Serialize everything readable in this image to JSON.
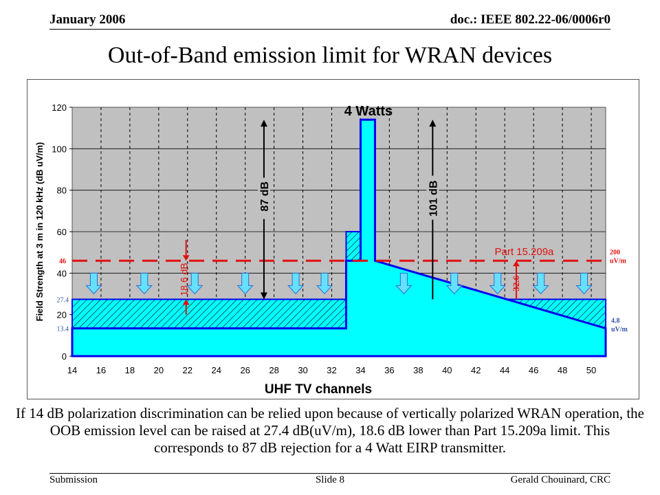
{
  "header": {
    "date": "January 2006",
    "doc_id": "doc.: IEEE 802.22-06/0006r0"
  },
  "title": "Out-of-Band emission limit for WRAN devices",
  "chart_data": {
    "type": "area",
    "xlabel": "UHF TV channels",
    "ylabel": "Field Strength at 3 m in 120 kHz (dB uV/m)",
    "x_ticks": [
      14,
      16,
      18,
      20,
      22,
      24,
      26,
      28,
      30,
      32,
      34,
      36,
      38,
      40,
      42,
      44,
      46,
      48,
      50
    ],
    "y_ticks": [
      0,
      20,
      40,
      60,
      80,
      100,
      120
    ],
    "xlim": [
      14,
      51
    ],
    "ylim": [
      0,
      120
    ],
    "grid": "vertical dashed",
    "series": [
      {
        "name": "",
        "x": [
          14,
          33,
          33,
          34,
          34,
          35,
          35,
          51
        ],
        "y": [
          13.4,
          13.4,
          46,
          46,
          114,
          114,
          46,
          13.4
        ]
      },
      {
        "name": "",
        "x": [
          14,
          33,
          33,
          34,
          35,
          35,
          51
        ],
        "y": [
          27.4,
          27.4,
          60,
          60,
          60,
          27.4,
          27.4
        ]
      }
    ],
    "limit_line": {
      "label": "Part 15.209a",
      "y": 46,
      "style": "dashed",
      "color": "#e01010"
    },
    "annotations": {
      "power_label": "4 Watts",
      "rejection_87": "87 dB",
      "rejection_101": "101 dB",
      "delta_186": "18.6 dB",
      "delta_326": "32.6",
      "left_46": "46",
      "left_274": "27.4",
      "left_134": "13.4",
      "right_200": "200",
      "right_200_unit": "uV/m",
      "right_48": "4.8",
      "right_48_unit": "uV/m"
    },
    "down_arrow_channels": [
      15.5,
      19,
      22.5,
      26,
      29.5,
      31.5,
      37,
      40.5,
      43.5,
      46.5,
      49.5
    ],
    "colors": {
      "fill": "#00ffff",
      "outline": "#0000ee",
      "plot_bg": "#c0c0c0",
      "limit": "#e01010",
      "hatch": "#000000"
    }
  },
  "caption": "If 14 dB polarization discrimination can be relied upon because of vertically polarized WRAN operation, the OOB emission level can be raised at 27.4 dB(uV/m), 18.6 dB lower than Part 15.209a limit.  This corresponds to 87 dB rejection for a 4 Watt EIRP transmitter.",
  "footer": {
    "left": "Submission",
    "center": "Slide 8",
    "right": "Gerald Chouinard, CRC"
  }
}
